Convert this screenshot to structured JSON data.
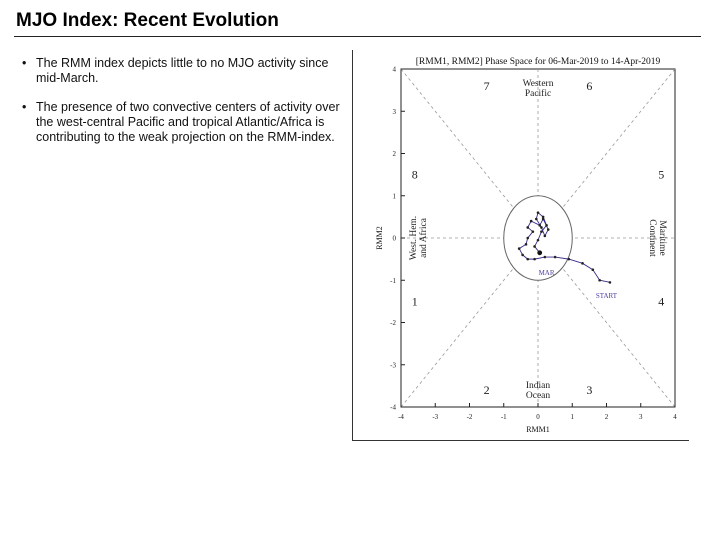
{
  "header": {
    "title": "MJO Index: Recent Evolution"
  },
  "bullets": [
    "The RMM index depicts little to no MJO activity since mid-March.",
    "The presence of two convective centers of activity over the west-central Pacific and tropical Atlantic/Africa is contributing to the weak projection on the RMM-index."
  ],
  "chart_data": {
    "type": "line",
    "title": "[RMM1, RMM2] Phase Space for 06-Mar-2019 to 14-Apr-2019",
    "xlabel": "RMM1",
    "ylabel": "RMM2",
    "xlim": [
      -4,
      4
    ],
    "ylim": [
      -4,
      4
    ],
    "xticks": [
      "-4",
      "-3",
      "-2",
      "-1",
      "0",
      "1",
      "2",
      "3",
      "4"
    ],
    "yticks": [
      "-4",
      "-3",
      "-2",
      "-1",
      "0",
      "1",
      "2",
      "3",
      "4"
    ],
    "unit_circle_radius": 1,
    "phase_numbers": [
      {
        "label": "1",
        "x": -3.6,
        "y": -1.5
      },
      {
        "label": "2",
        "x": -1.5,
        "y": -3.6
      },
      {
        "label": "3",
        "x": 1.5,
        "y": -3.6
      },
      {
        "label": "4",
        "x": 3.6,
        "y": -1.5
      },
      {
        "label": "5",
        "x": 3.6,
        "y": 1.5
      },
      {
        "label": "6",
        "x": 1.5,
        "y": 3.6
      },
      {
        "label": "7",
        "x": -1.5,
        "y": 3.6
      },
      {
        "label": "8",
        "x": -3.6,
        "y": 1.5
      }
    ],
    "region_labels": [
      {
        "lines": [
          "Western",
          "Pacific"
        ],
        "x": 0,
        "y": 3.55,
        "rotate": 0
      },
      {
        "lines": [
          "Indian",
          "Ocean"
        ],
        "x": 0,
        "y": -3.6,
        "rotate": 0
      },
      {
        "lines": [
          "West. Hem.",
          "and Africa"
        ],
        "x": -3.5,
        "y": 0,
        "rotate": -90
      },
      {
        "lines": [
          "Maritime",
          "Continent"
        ],
        "x": 3.5,
        "y": 0,
        "rotate": 90
      }
    ],
    "series": [
      {
        "color": "#3a2a8c",
        "x": [
          2.1,
          1.8,
          1.6,
          1.3,
          0.9,
          0.5,
          0.2,
          -0.1,
          -0.3,
          -0.45,
          -0.55,
          -0.35,
          -0.3,
          -0.15,
          -0.3,
          -0.2,
          0.05,
          0.15,
          0.3,
          0.2,
          0.1,
          -0.05,
          0.0,
          0.15,
          0.25,
          0.1,
          0.0,
          -0.1,
          0.05
        ],
        "y": [
          -1.05,
          -1.0,
          -0.75,
          -0.6,
          -0.5,
          -0.45,
          -0.45,
          -0.5,
          -0.5,
          -0.4,
          -0.25,
          -0.15,
          0.0,
          0.15,
          0.25,
          0.4,
          0.3,
          0.45,
          0.2,
          0.05,
          0.25,
          0.45,
          0.6,
          0.5,
          0.3,
          0.15,
          -0.05,
          -0.2,
          -0.35
        ]
      }
    ],
    "point_labels": [
      {
        "text": "START",
        "x": 2.0,
        "y": -1.42
      },
      {
        "text": "MAR",
        "x": 0.25,
        "y": -0.88
      }
    ],
    "legend": "none",
    "grid": false
  }
}
